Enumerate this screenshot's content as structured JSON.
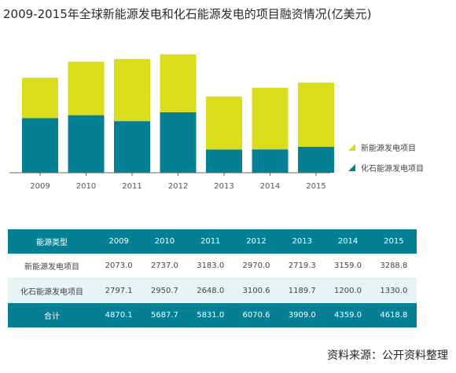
{
  "title": "2009-2015年全球新能源发电和化石能源发电的项目融资情况(亿美元)",
  "source": "资料来源：公开资料整理",
  "colors": {
    "new_energy": "#d9dd1a",
    "fossil": "#057f94",
    "axis": "#666666"
  },
  "chart_data": {
    "type": "bar",
    "stacked": true,
    "categories": [
      "2009",
      "2010",
      "2011",
      "2012",
      "2013",
      "2014",
      "2015"
    ],
    "series": [
      {
        "name": "化石能源发电项目",
        "values": [
          2797.1,
          2950.7,
          2648.0,
          3100.6,
          1189.7,
          1200.0,
          1330.0
        ]
      },
      {
        "name": "新能源发电项目",
        "values": [
          2073.0,
          2737.0,
          3183.0,
          2970.0,
          2719.3,
          3159.0,
          3288.8
        ]
      }
    ],
    "ylim": [
      0,
      7000
    ],
    "grid": false,
    "legend_position": "right"
  },
  "table": {
    "header": [
      "能源类型",
      "2009",
      "2010",
      "2011",
      "2012",
      "2013",
      "2014",
      "2015"
    ],
    "rows": [
      [
        "新能源发电项目",
        "2073.0",
        "2737.0",
        "3183.0",
        "2970.0",
        "2719.3",
        "3159.0",
        "3288.8"
      ],
      [
        "化石能源发电项目",
        "2797.1",
        "2950.7",
        "2648.0",
        "3100.6",
        "1189.7",
        "1200.0",
        "1330.0"
      ],
      [
        "合计",
        "4870.1",
        "5687.7",
        "5831.0",
        "6070.6",
        "3909.0",
        "4359.0",
        "4618.8"
      ]
    ]
  }
}
